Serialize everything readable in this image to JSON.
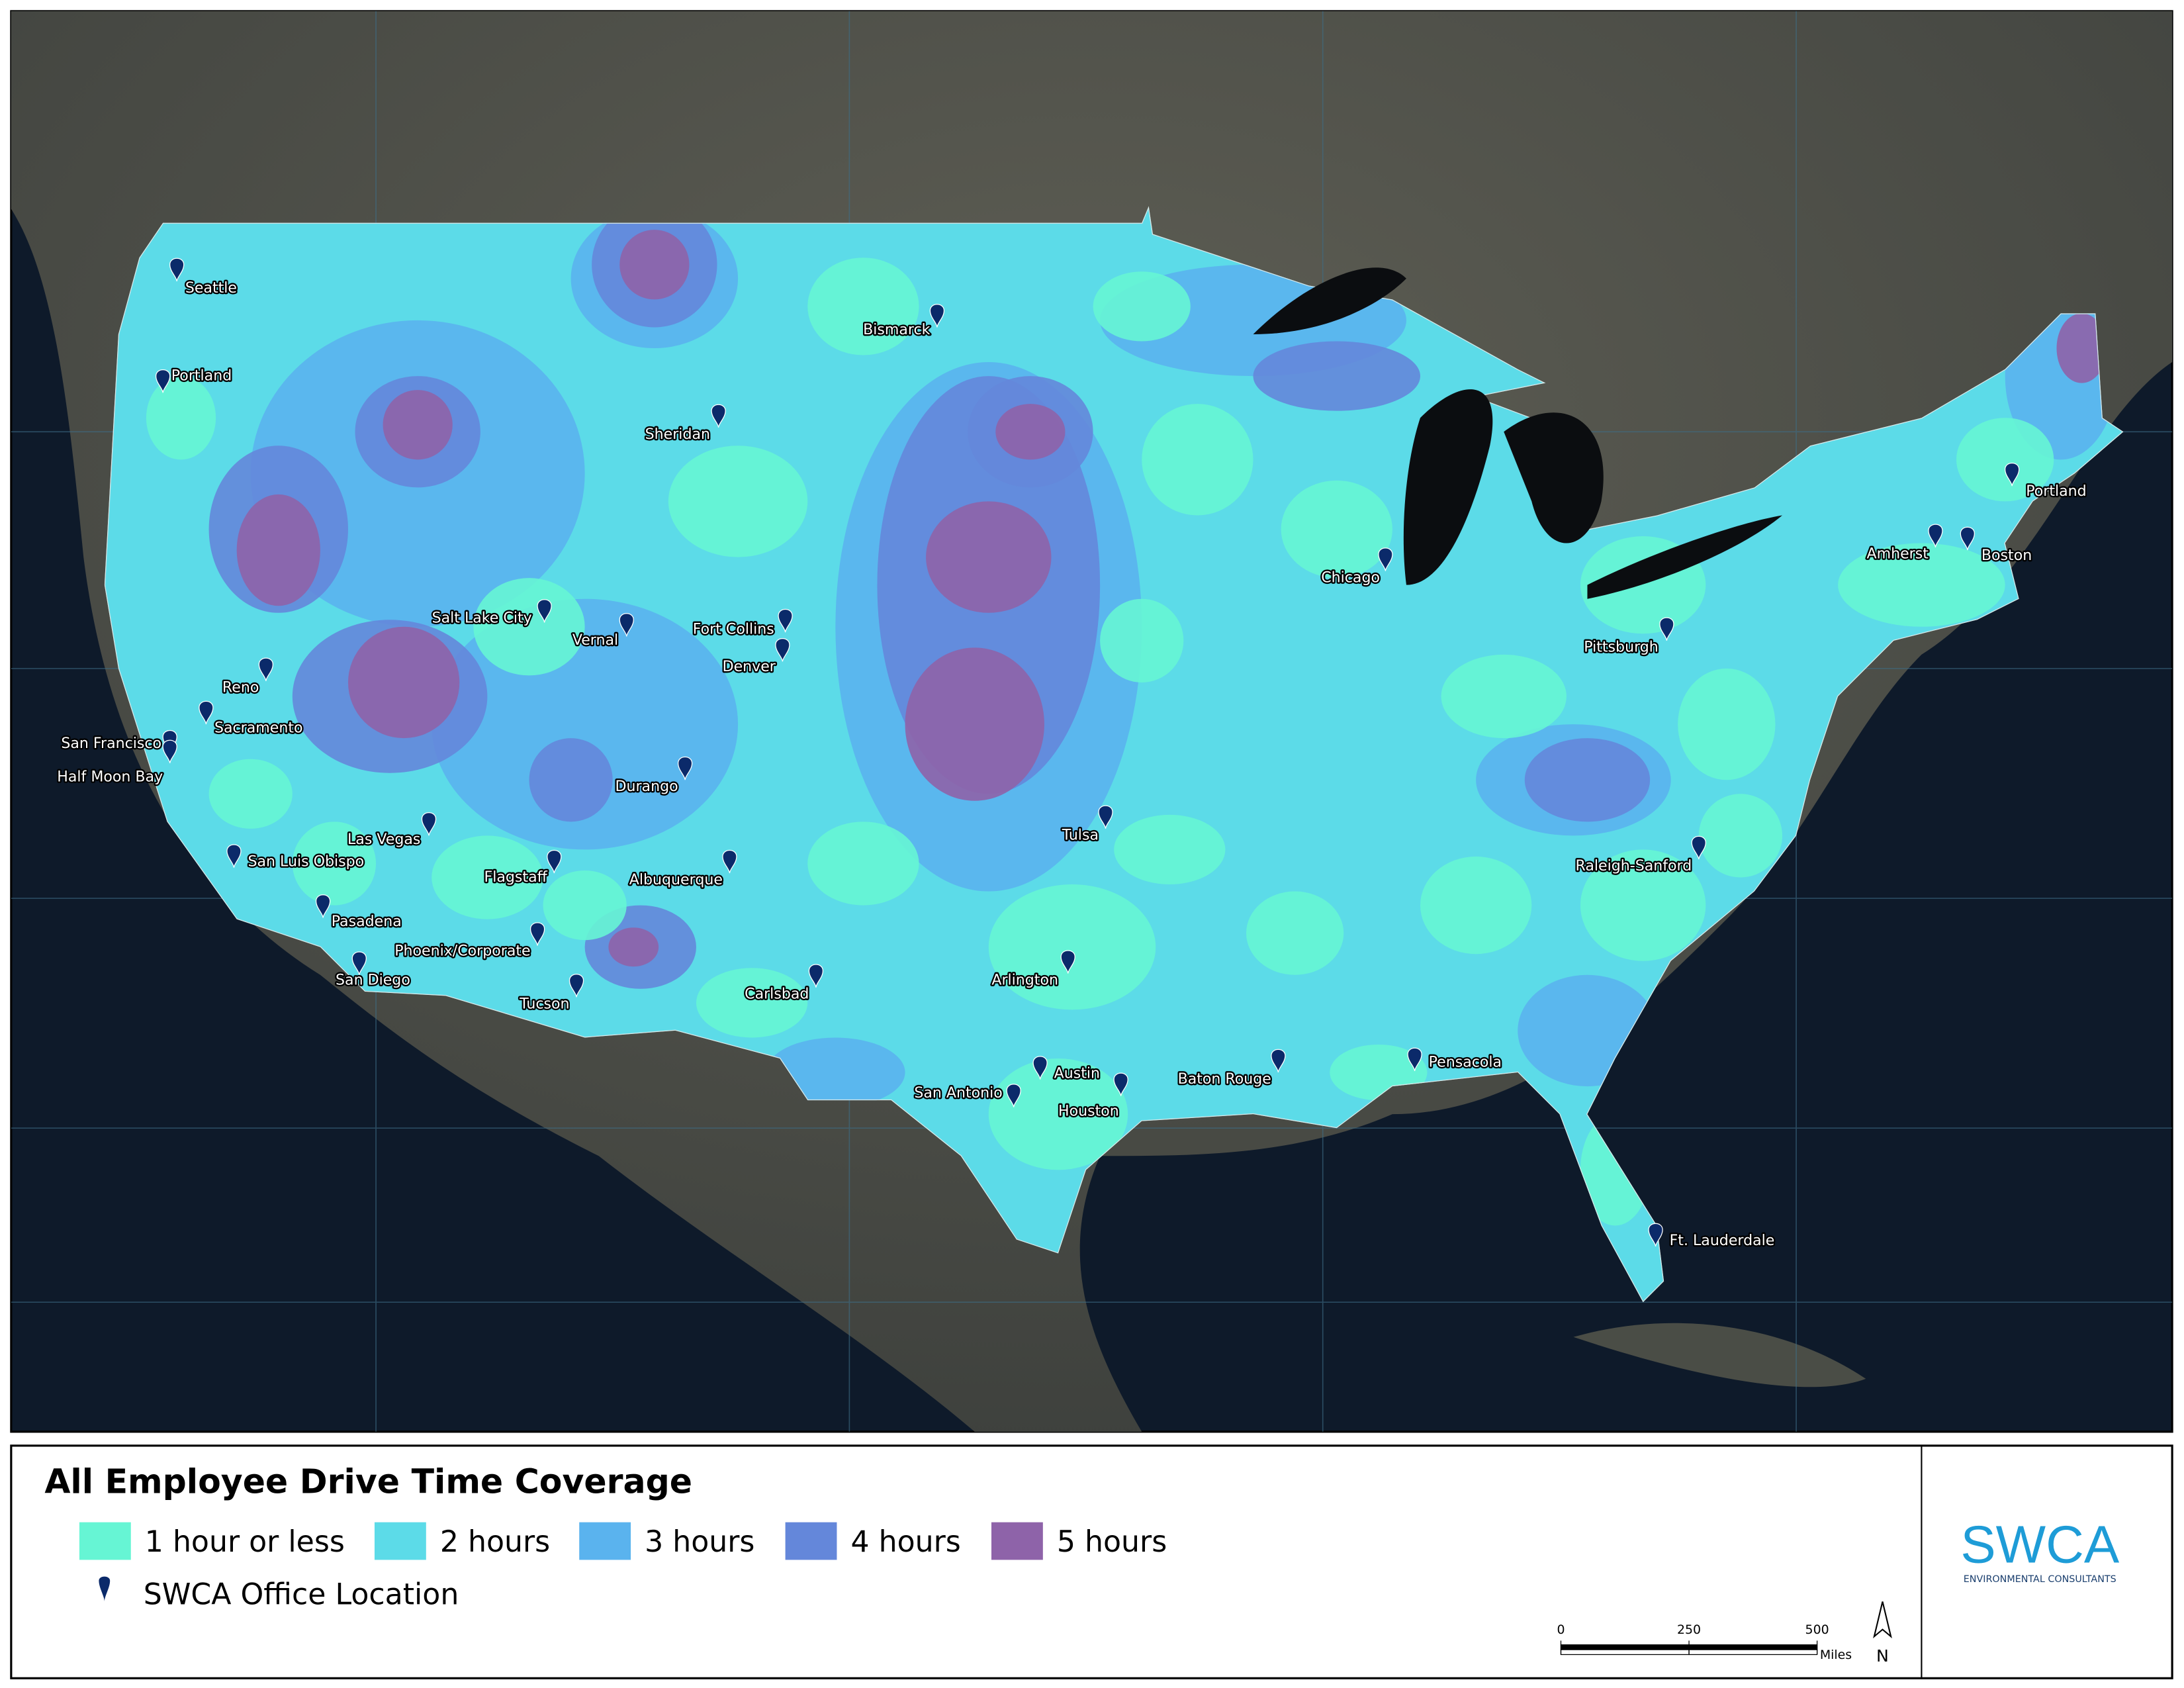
{
  "title": "All Employee Drive Time Coverage",
  "legend": {
    "items": [
      {
        "label": "1 hour or less",
        "color": "#66f5d4"
      },
      {
        "label": "2 hours",
        "color": "#5cdbe8"
      },
      {
        "label": "3 hours",
        "color": "#5ab3ee"
      },
      {
        "label": "4 hours",
        "color": "#6487da"
      },
      {
        "label": "5 hours",
        "color": "#8e63a9"
      }
    ],
    "office_label": "SWCA Office Location"
  },
  "offices": [
    "Seattle",
    "Portland",
    "Bismarck",
    "Sheridan",
    "Salt Lake City",
    "Vernal",
    "Fort Collins",
    "Denver",
    "Reno",
    "Sacramento",
    "San Francisco",
    "Half Moon Bay",
    "Durango",
    "Las Vegas",
    "Flagstaff",
    "Albuquerque",
    "San Luis Obispo",
    "Pasadena",
    "Phoenix/Corporate",
    "San Diego",
    "Tucson",
    "Carlsbad",
    "Tulsa",
    "Arlington",
    "Austin",
    "San Antonio",
    "Houston",
    "Baton Rouge",
    "Pensacola",
    "Chicago",
    "Pittsburgh",
    "Raleigh-Sanford",
    "Amherst",
    "Boston",
    "Portland",
    "Ft. Lauderdale"
  ],
  "scale_bar": {
    "ticks": [
      0,
      250,
      500
    ],
    "unit": "Miles"
  },
  "north": "N",
  "logo": {
    "name": "SWCA",
    "tagline": "ENVIRONMENTAL CONSULTANTS"
  }
}
